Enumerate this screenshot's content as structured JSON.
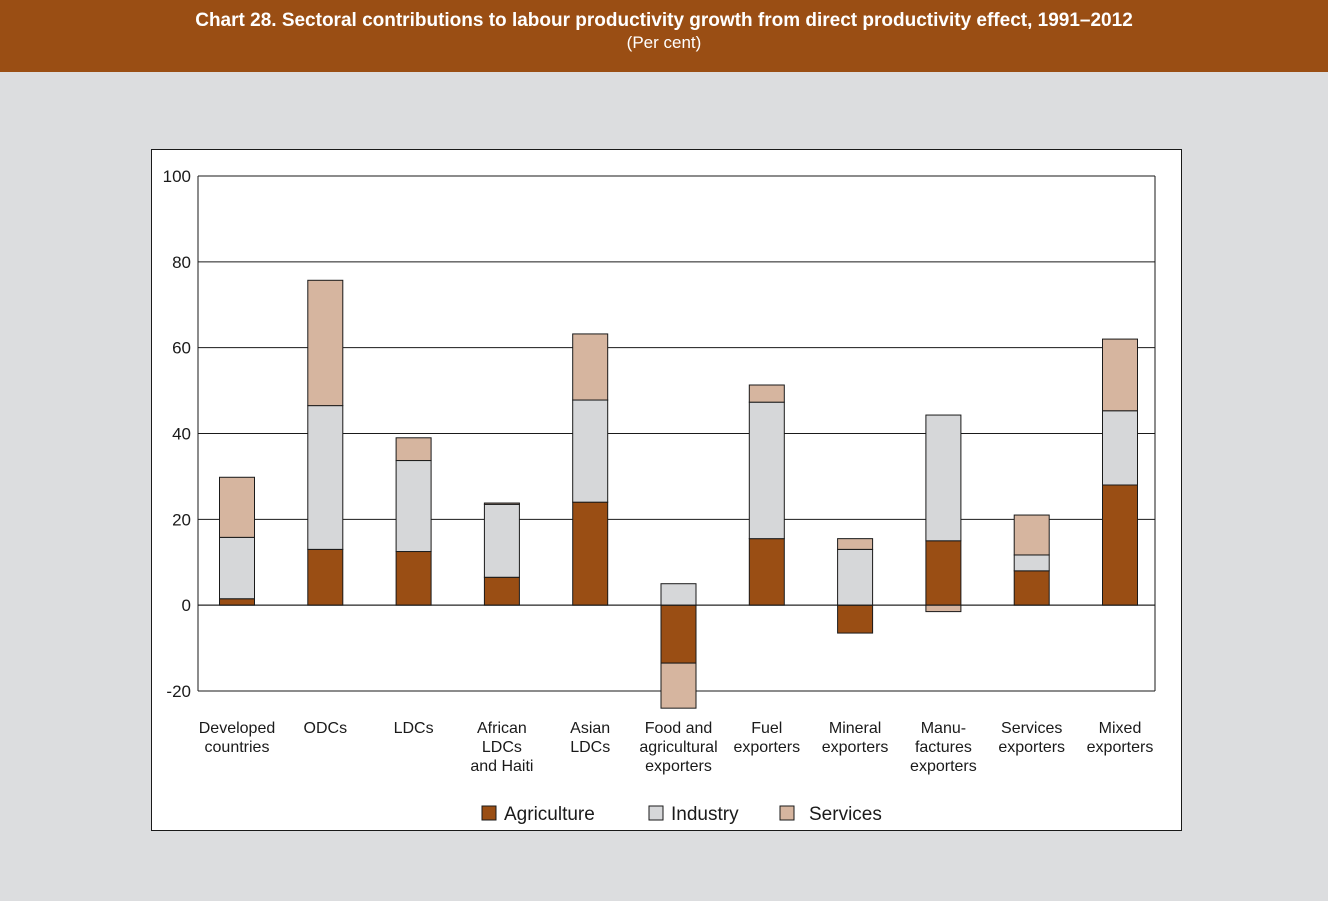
{
  "header": {
    "title": "Chart 28. Sectoral contributions to labour productivity growth from direct productivity effect, 1991–2012",
    "subtitle": "(Per cent)"
  },
  "colors": {
    "banner": "#9a4e14",
    "panel": "#dcdddf",
    "agriculture": "#9a4e14",
    "industry": "#d6d7d9",
    "services": "#d6b59f"
  },
  "chart_data": {
    "type": "bar",
    "stacked": true,
    "categories": [
      [
        "Developed",
        "countries"
      ],
      [
        "ODCs"
      ],
      [
        "LDCs"
      ],
      [
        "African",
        "LDCs",
        "and Haiti"
      ],
      [
        "Asian",
        "LDCs"
      ],
      [
        "Food and",
        "agricultural",
        "exporters"
      ],
      [
        "Fuel",
        "exporters"
      ],
      [
        "Mineral",
        "exporters"
      ],
      [
        "Manu-",
        "factures",
        "exporters"
      ],
      [
        "Services",
        "exporters"
      ],
      [
        "Mixed",
        "exporters"
      ]
    ],
    "series": [
      {
        "name": "Agriculture",
        "color": "#9a4e14",
        "values": [
          1.5,
          13,
          12.5,
          6.5,
          24,
          -13.5,
          15.5,
          -6.5,
          15,
          8,
          28
        ]
      },
      {
        "name": "Industry",
        "color": "#d6d7d9",
        "values": [
          14.3,
          33.5,
          21.2,
          17,
          23.8,
          5,
          31.8,
          13,
          29.3,
          3.7,
          17.3
        ]
      },
      {
        "name": "Services",
        "color": "#d6b59f",
        "values": [
          14,
          29.2,
          5.3,
          0.3,
          15.4,
          -10.5,
          4,
          2.5,
          -1.5,
          9.3,
          16.7
        ]
      }
    ],
    "ylim": [
      -20,
      100
    ],
    "yticks": [
      -20,
      0,
      20,
      40,
      60,
      80,
      100
    ],
    "grid": true,
    "legend": "bottom"
  }
}
